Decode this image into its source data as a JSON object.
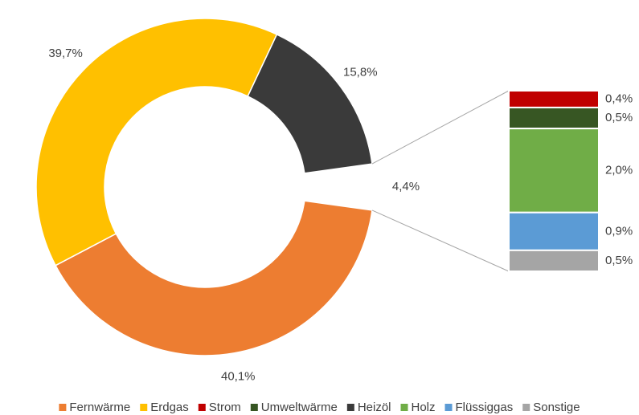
{
  "chart_data": {
    "type": "pie",
    "categories": [
      "Fernwärme",
      "Erdgas",
      "Strom",
      "Umweltwärme",
      "Heizöl",
      "Holz",
      "Flüssiggas",
      "Sonstige"
    ],
    "values": [
      40.1,
      39.7,
      0.4,
      0.5,
      15.8,
      2.0,
      0.9,
      0.5
    ],
    "value_labels": [
      "40,1%",
      "39,7%",
      "0,4%",
      "0,5%",
      "15,8%",
      "2,0%",
      "0,9%",
      "0,5%"
    ],
    "colors": [
      "#ED7D31",
      "#FFC000",
      "#C00000",
      "#375623",
      "#3A3A3A",
      "#70AD47",
      "#5B9BD5",
      "#A5A5A5"
    ],
    "secondary": [
      false,
      false,
      true,
      true,
      false,
      true,
      true,
      true
    ],
    "other_value": 4.4,
    "other_label": "4,4%",
    "legend": "bottom"
  }
}
